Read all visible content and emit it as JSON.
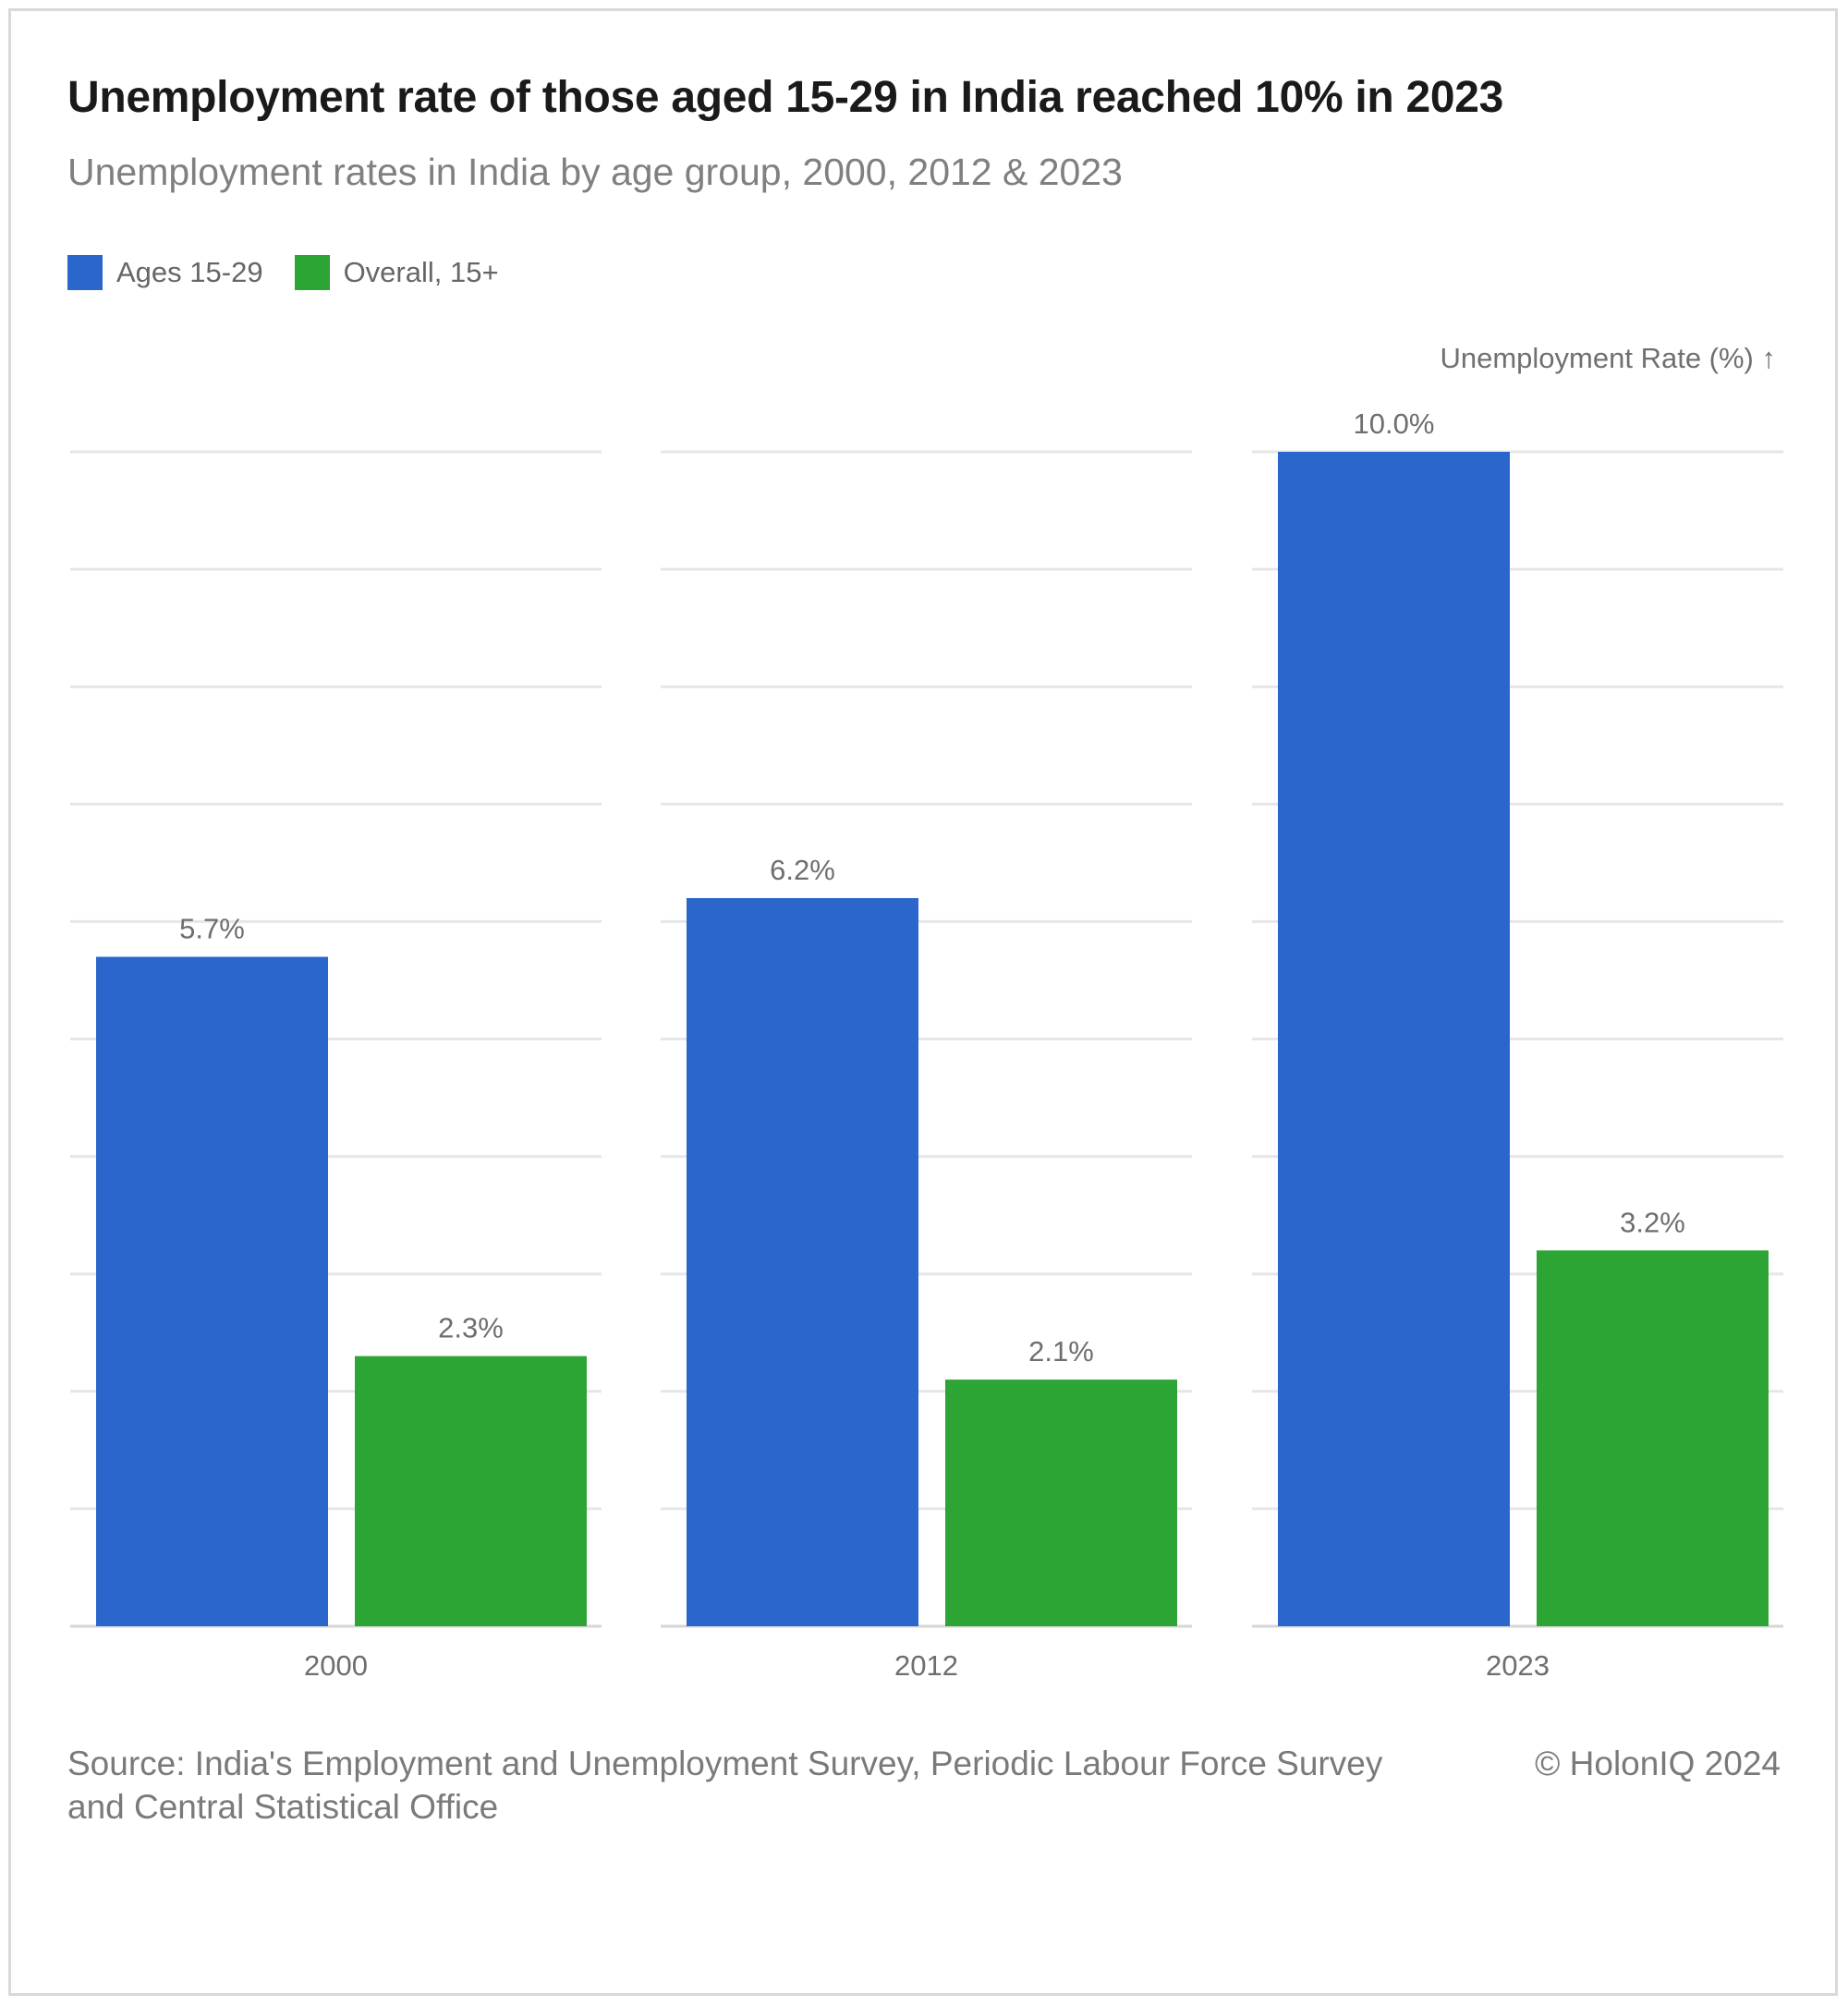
{
  "title": "Unemployment rate of those aged 15-29 in India reached 10% in 2023",
  "subtitle": "Unemployment rates in India by age group, 2000, 2012 & 2023",
  "legend": [
    {
      "label": "Ages 15-29",
      "color": "#2a66cc"
    },
    {
      "label": "Overall, 15+",
      "color": "#2ca535"
    }
  ],
  "footer": {
    "source": "Source: India's Employment and Unemployment Survey, Periodic Labour Force Survey and Central Statistical Office",
    "credit": "© HolonIQ 2024"
  },
  "chart_data": {
    "type": "bar",
    "categories": [
      "2000",
      "2012",
      "2023"
    ],
    "series": [
      {
        "name": "Ages 15-29",
        "values": [
          5.7,
          6.2,
          10.0
        ],
        "labels": [
          "5.7%",
          "6.2%",
          "10.0%"
        ],
        "color": "#2a66cc"
      },
      {
        "name": "Overall, 15+",
        "values": [
          2.3,
          2.1,
          3.2
        ],
        "labels": [
          "2.3%",
          "2.1%",
          "3.2%"
        ],
        "color": "#2ca535"
      }
    ],
    "ylabel": "Unemployment Rate (%) ↑",
    "ylim": [
      0,
      10
    ],
    "grid": true,
    "legend_position": "top-left"
  }
}
